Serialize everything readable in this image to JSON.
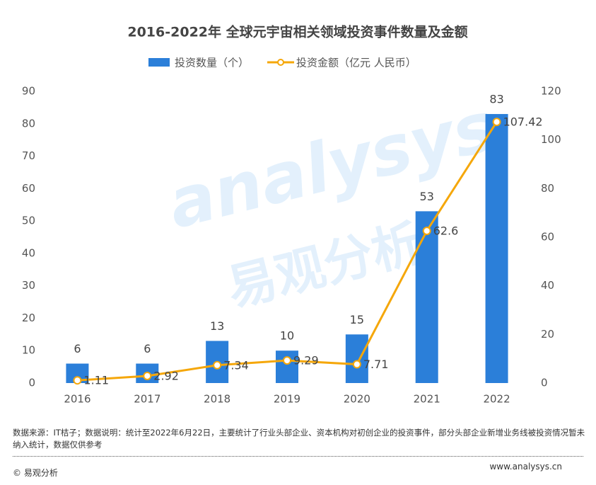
{
  "chart_data": {
    "type": "combo",
    "title": "2016-2022年 全球元宇宙相关领域投资事件数量及金额",
    "categories": [
      "2016",
      "2017",
      "2018",
      "2019",
      "2020",
      "2021",
      "2022"
    ],
    "series": [
      {
        "name": "投资数量（个）",
        "type": "bar",
        "color": "#2b7fd9",
        "values": [
          6,
          6,
          13,
          10,
          15,
          53,
          83
        ]
      },
      {
        "name": "投资金额（亿元 人民币）",
        "type": "line",
        "color": "#f5a70a",
        "axis": "y2",
        "values": [
          1.11,
          2.92,
          7.34,
          9.29,
          7.71,
          62.6,
          107.42
        ]
      }
    ],
    "ylim": [
      0,
      90
    ],
    "yticks": [
      0,
      10,
      20,
      30,
      40,
      50,
      60,
      70,
      80,
      90
    ],
    "y2lim": [
      0,
      120
    ],
    "y2ticks": [
      0,
      20,
      40,
      60,
      80,
      100,
      120
    ],
    "legend": "top",
    "grid": false,
    "watermark": [
      "analysys",
      "易观分析"
    ],
    "note": "数据来源：IT桔子；数据说明：统计至2022年6月22日，主要统计了行业头部企业、资本机构对初创企业的投资事件，部分头部企业新增业务线被投资情况暂未纳入统计，数据仅供参考",
    "copyright": "© 易观分析",
    "website": "www.analysys.cn"
  }
}
